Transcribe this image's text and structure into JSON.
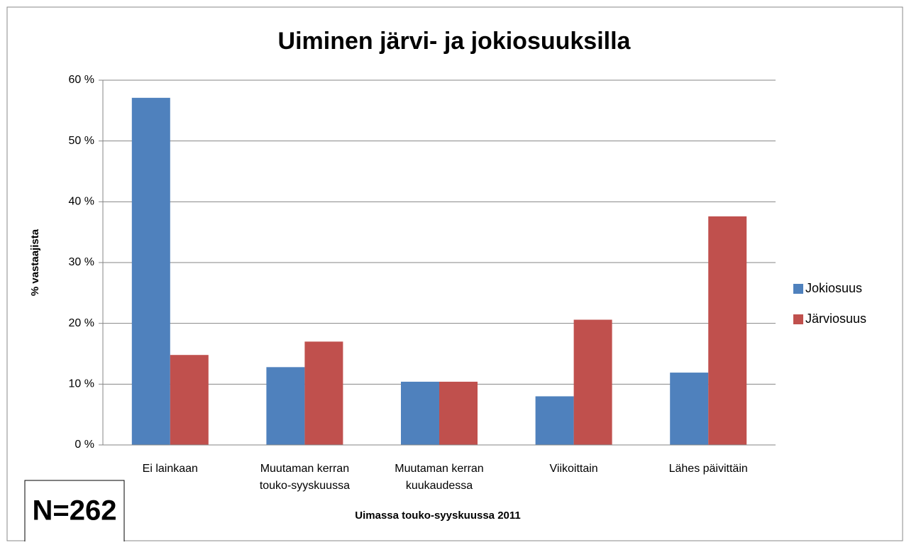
{
  "chart_data": {
    "type": "bar",
    "title": "Uiminen järvi- ja jokiosuuksilla",
    "y_label": "% vastaajista",
    "x_label": "Uimassa touko-syyskuussa 2011",
    "annotation": "N=262",
    "categories": [
      [
        "Ei lainkaan"
      ],
      [
        "Muutaman kerran",
        "touko-syyskuussa"
      ],
      [
        "Muutaman kerran",
        "kuukaudessa"
      ],
      [
        "Viikoittain"
      ],
      [
        "Lähes päivittäin"
      ]
    ],
    "series": [
      {
        "name": "Jokiosuus",
        "color": "#4f81bd",
        "values": [
          57.1,
          12.8,
          10.4,
          8.0,
          11.9
        ]
      },
      {
        "name": "Järviosuus",
        "color": "#c0504d",
        "values": [
          14.8,
          17.0,
          10.4,
          20.6,
          37.6
        ]
      }
    ],
    "ylim": [
      0,
      60
    ],
    "yticks": [
      {
        "value": 0,
        "label": "0 %"
      },
      {
        "value": 10,
        "label": "10 %"
      },
      {
        "value": 20,
        "label": "20 %"
      },
      {
        "value": 30,
        "label": "30 %"
      },
      {
        "value": 40,
        "label": "40 %"
      },
      {
        "value": 50,
        "label": "50 %"
      },
      {
        "value": 60,
        "label": "60 %"
      }
    ],
    "grid": true,
    "legend": "right"
  }
}
